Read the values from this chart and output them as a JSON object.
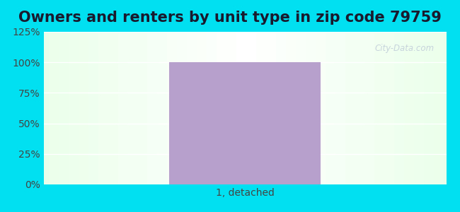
{
  "title": "Owners and renters by unit type in zip code 79759",
  "categories": [
    "1, detached"
  ],
  "values": [
    100
  ],
  "bar_color": "#b8a0cc",
  "bar_width": 0.45,
  "ylim": [
    0,
    125
  ],
  "yticks": [
    0,
    25,
    50,
    75,
    100,
    125
  ],
  "ytick_labels": [
    "0%",
    "25%",
    "50%",
    "75%",
    "100%",
    "125%"
  ],
  "title_fontsize": 15,
  "tick_fontsize": 10,
  "outer_bg_color": "#00e0f0",
  "watermark_text": "City-Data.com",
  "watermark_color": "#c0ccd8",
  "xlim": [
    -0.6,
    0.6
  ]
}
